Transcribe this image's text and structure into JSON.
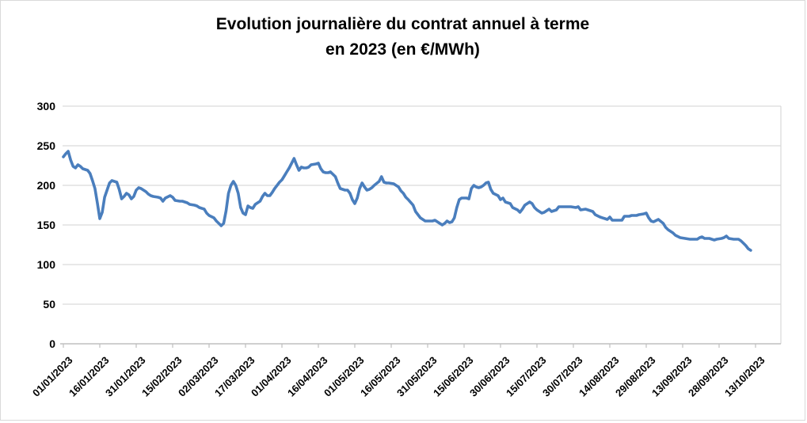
{
  "chart_data": {
    "type": "line",
    "title_line1": "Evolution journalière du contrat annuel à terme",
    "title_line2": "en 2023 (en €/MWh)",
    "grid": true,
    "legend": "none",
    "colors": {
      "line": "#4a7ebd",
      "gridline": "#d9d9d9",
      "axis": "#bfbfbf",
      "text": "#000000"
    },
    "y_axis": {
      "min": 0,
      "max": 300,
      "step": 50,
      "ticks": [
        300,
        250,
        200,
        150,
        100,
        50,
        0
      ]
    },
    "x_axis": {
      "tick_interval_days": 15,
      "tick_labels": [
        "01/01/2023",
        "16/01/2023",
        "31/01/2023",
        "15/02/2023",
        "02/03/2023",
        "17/03/2023",
        "01/04/2023",
        "16/04/2023",
        "01/05/2023",
        "16/05/2023",
        "31/05/2023",
        "15/06/2023",
        "30/06/2023",
        "15/07/2023",
        "30/07/2023",
        "14/08/2023",
        "29/08/2023",
        "13/09/2023",
        "28/09/2023",
        "13/10/2023"
      ]
    },
    "series": [
      {
        "name": "Contrat annuel à terme (€/MWh)",
        "points_format": "[day_offset_from_01/01/2023, price_eur_mwh]",
        "points": [
          [
            0,
            236
          ],
          [
            1,
            240
          ],
          [
            2,
            243
          ],
          [
            3,
            232
          ],
          [
            4,
            224
          ],
          [
            5,
            222
          ],
          [
            6,
            226
          ],
          [
            7,
            224
          ],
          [
            8,
            221
          ],
          [
            9,
            220
          ],
          [
            10,
            219
          ],
          [
            11,
            215
          ],
          [
            12,
            206
          ],
          [
            13,
            196
          ],
          [
            14,
            178
          ],
          [
            15,
            158
          ],
          [
            16,
            166
          ],
          [
            17,
            185
          ],
          [
            18,
            194
          ],
          [
            19,
            203
          ],
          [
            20,
            206
          ],
          [
            21,
            205
          ],
          [
            22,
            204
          ],
          [
            23,
            195
          ],
          [
            24,
            183
          ],
          [
            25,
            186
          ],
          [
            26,
            190
          ],
          [
            27,
            188
          ],
          [
            28,
            183
          ],
          [
            29,
            186
          ],
          [
            30,
            194
          ],
          [
            31,
            197
          ],
          [
            32,
            196
          ],
          [
            33,
            194
          ],
          [
            34,
            192
          ],
          [
            35,
            189
          ],
          [
            36,
            187
          ],
          [
            37,
            186
          ],
          [
            39,
            185
          ],
          [
            40,
            184
          ],
          [
            41,
            180
          ],
          [
            42,
            184
          ],
          [
            44,
            187
          ],
          [
            45,
            185
          ],
          [
            46,
            181
          ],
          [
            48,
            180
          ],
          [
            49,
            180
          ],
          [
            51,
            178
          ],
          [
            52,
            176
          ],
          [
            54,
            175
          ],
          [
            55,
            174
          ],
          [
            56,
            172
          ],
          [
            58,
            170
          ],
          [
            59,
            165
          ],
          [
            60,
            162
          ],
          [
            62,
            159
          ],
          [
            63,
            155
          ],
          [
            64,
            152
          ],
          [
            65,
            149
          ],
          [
            66,
            152
          ],
          [
            67,
            168
          ],
          [
            68,
            190
          ],
          [
            69,
            200
          ],
          [
            70,
            205
          ],
          [
            71,
            200
          ],
          [
            72,
            190
          ],
          [
            73,
            172
          ],
          [
            74,
            165
          ],
          [
            75,
            163
          ],
          [
            76,
            174
          ],
          [
            77,
            172
          ],
          [
            78,
            171
          ],
          [
            79,
            176
          ],
          [
            80,
            178
          ],
          [
            81,
            180
          ],
          [
            82,
            186
          ],
          [
            83,
            190
          ],
          [
            84,
            187
          ],
          [
            85,
            187
          ],
          [
            86,
            191
          ],
          [
            87,
            196
          ],
          [
            88,
            200
          ],
          [
            89,
            204
          ],
          [
            90,
            207
          ],
          [
            91,
            212
          ],
          [
            92,
            217
          ],
          [
            93,
            222
          ],
          [
            94,
            228
          ],
          [
            95,
            234
          ],
          [
            96,
            226
          ],
          [
            97,
            219
          ],
          [
            98,
            223
          ],
          [
            99,
            222
          ],
          [
            100,
            222
          ],
          [
            101,
            223
          ],
          [
            102,
            226
          ],
          [
            104,
            227
          ],
          [
            105,
            228
          ],
          [
            106,
            221
          ],
          [
            107,
            217
          ],
          [
            108,
            216
          ],
          [
            109,
            216
          ],
          [
            110,
            217
          ],
          [
            111,
            214
          ],
          [
            112,
            211
          ],
          [
            113,
            203
          ],
          [
            114,
            196
          ],
          [
            116,
            194
          ],
          [
            117,
            194
          ],
          [
            118,
            190
          ],
          [
            119,
            182
          ],
          [
            120,
            177
          ],
          [
            121,
            184
          ],
          [
            122,
            196
          ],
          [
            123,
            203
          ],
          [
            124,
            198
          ],
          [
            125,
            194
          ],
          [
            126,
            195
          ],
          [
            127,
            197
          ],
          [
            128,
            200
          ],
          [
            130,
            205
          ],
          [
            131,
            211
          ],
          [
            132,
            204
          ],
          [
            133,
            203
          ],
          [
            134,
            203
          ],
          [
            136,
            202
          ],
          [
            137,
            200
          ],
          [
            138,
            198
          ],
          [
            139,
            193
          ],
          [
            140,
            190
          ],
          [
            141,
            185
          ],
          [
            142,
            182
          ],
          [
            144,
            175
          ],
          [
            145,
            167
          ],
          [
            147,
            159
          ],
          [
            149,
            155
          ],
          [
            150,
            155
          ],
          [
            152,
            155
          ],
          [
            153,
            156
          ],
          [
            155,
            152
          ],
          [
            156,
            150
          ],
          [
            157,
            152
          ],
          [
            158,
            155
          ],
          [
            159,
            153
          ],
          [
            160,
            154
          ],
          [
            161,
            159
          ],
          [
            162,
            172
          ],
          [
            163,
            182
          ],
          [
            164,
            184
          ],
          [
            166,
            184
          ],
          [
            167,
            183
          ],
          [
            168,
            196
          ],
          [
            169,
            200
          ],
          [
            170,
            198
          ],
          [
            171,
            197
          ],
          [
            172,
            198
          ],
          [
            173,
            200
          ],
          [
            174,
            203
          ],
          [
            175,
            204
          ],
          [
            176,
            195
          ],
          [
            177,
            190
          ],
          [
            179,
            187
          ],
          [
            180,
            182
          ],
          [
            181,
            184
          ],
          [
            182,
            179
          ],
          [
            184,
            177
          ],
          [
            185,
            172
          ],
          [
            187,
            169
          ],
          [
            188,
            166
          ],
          [
            189,
            170
          ],
          [
            190,
            175
          ],
          [
            192,
            179
          ],
          [
            193,
            177
          ],
          [
            194,
            172
          ],
          [
            195,
            169
          ],
          [
            197,
            165
          ],
          [
            198,
            166
          ],
          [
            200,
            170
          ],
          [
            201,
            167
          ],
          [
            203,
            169
          ],
          [
            204,
            173
          ],
          [
            206,
            173
          ],
          [
            207,
            173
          ],
          [
            209,
            173
          ],
          [
            211,
            172
          ],
          [
            212,
            173
          ],
          [
            213,
            169
          ],
          [
            215,
            170
          ],
          [
            216,
            169
          ],
          [
            218,
            167
          ],
          [
            219,
            163
          ],
          [
            221,
            160
          ],
          [
            223,
            158
          ],
          [
            224,
            157
          ],
          [
            225,
            160
          ],
          [
            226,
            156
          ],
          [
            228,
            156
          ],
          [
            230,
            156
          ],
          [
            231,
            161
          ],
          [
            233,
            161
          ],
          [
            234,
            162
          ],
          [
            236,
            162
          ],
          [
            237,
            163
          ],
          [
            239,
            164
          ],
          [
            240,
            165
          ],
          [
            241,
            159
          ],
          [
            242,
            155
          ],
          [
            243,
            154
          ],
          [
            245,
            157
          ],
          [
            247,
            152
          ],
          [
            248,
            147
          ],
          [
            249,
            144
          ],
          [
            251,
            140
          ],
          [
            252,
            137
          ],
          [
            254,
            134
          ],
          [
            256,
            133
          ],
          [
            258,
            132
          ],
          [
            259,
            132
          ],
          [
            261,
            132
          ],
          [
            262,
            134
          ],
          [
            263,
            135
          ],
          [
            264,
            133
          ],
          [
            266,
            133
          ],
          [
            268,
            131
          ],
          [
            269,
            132
          ],
          [
            271,
            133
          ],
          [
            272,
            134
          ],
          [
            273,
            136
          ],
          [
            274,
            133
          ],
          [
            276,
            132
          ],
          [
            278,
            132
          ],
          [
            279,
            130
          ],
          [
            280,
            127
          ],
          [
            281,
            124
          ],
          [
            282,
            120
          ],
          [
            283,
            118
          ]
        ]
      }
    ]
  }
}
